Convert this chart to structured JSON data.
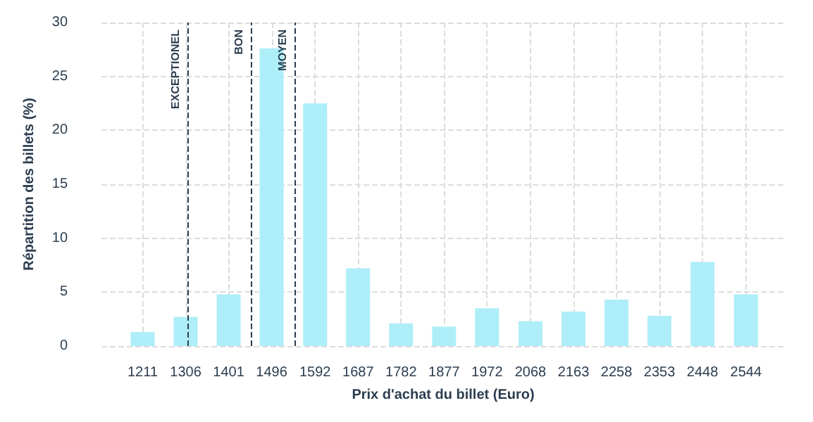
{
  "chart_data": {
    "type": "bar",
    "xlabel": "Prix d'achat du billet (Euro)",
    "ylabel": "Répartition des billets (%)",
    "x": [
      1211,
      1306,
      1401,
      1496,
      1592,
      1687,
      1782,
      1877,
      1972,
      2068,
      2163,
      2258,
      2353,
      2448,
      2544
    ],
    "values": [
      1.3,
      2.7,
      4.8,
      27.6,
      22.5,
      7.2,
      2.1,
      1.8,
      3.5,
      2.3,
      3.2,
      4.3,
      2.8,
      7.8,
      4.8
    ],
    "color": "#aeeef8",
    "xlim": [
      1120,
      2630
    ],
    "xticks": [
      1211,
      1306,
      1401,
      1496,
      1592,
      1687,
      1782,
      1877,
      1972,
      2068,
      2163,
      2258,
      2353,
      2448,
      2544
    ],
    "ylim": [
      0,
      30
    ],
    "yticks": [
      0,
      5,
      10,
      15,
      20,
      25,
      30
    ],
    "grid": true,
    "ref_lines": [
      {
        "axis": "x",
        "value": 1312,
        "label": "EXCEPTIONEL",
        "color": "#2c3e50",
        "line_style": "dashed"
      },
      {
        "axis": "x",
        "value": 1452,
        "label": "BON",
        "color": "#2c3e50",
        "line_style": "dashed"
      },
      {
        "axis": "x",
        "value": 1548,
        "label": "MOYEN",
        "color": "#2c3e50",
        "line_style": "dashed"
      }
    ]
  }
}
